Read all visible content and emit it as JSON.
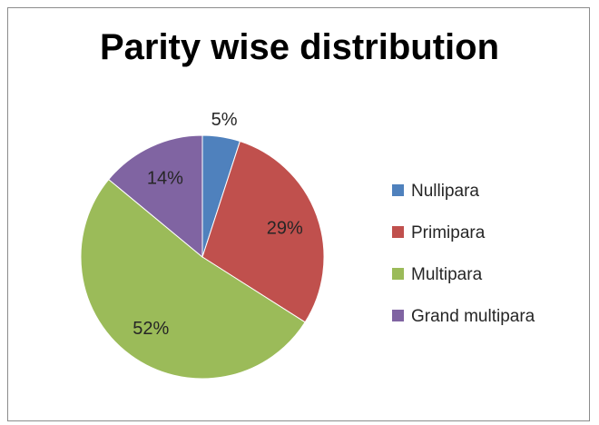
{
  "chart_data": {
    "type": "pie",
    "title": "Parity wise distribution",
    "categories": [
      "Nullipara",
      "Primipara",
      "Multipara",
      "Grand multipara"
    ],
    "values": [
      5,
      29,
      52,
      14
    ],
    "labels": [
      "5%",
      "29%",
      "52%",
      "14%"
    ],
    "colors": [
      "#4f81bd",
      "#c0504d",
      "#9bbb59",
      "#8064a2"
    ],
    "legend_position": "right"
  }
}
